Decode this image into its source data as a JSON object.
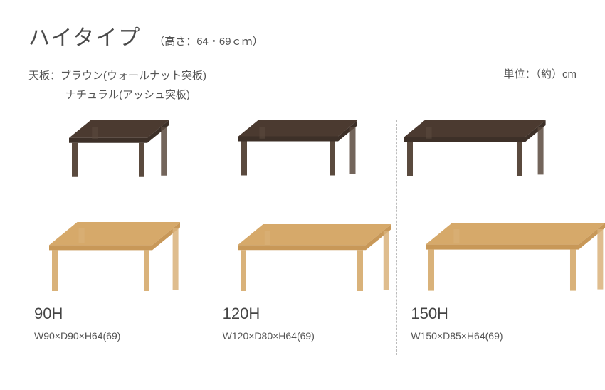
{
  "header": {
    "title": "ハイタイプ",
    "subtitle": "（高さ：64・69ｃｍ）"
  },
  "info": {
    "line1": "天板：ブラウン(ウォールナット突板)",
    "line2": "ナチュラル(アッシュ突板)",
    "unit": "単位：（約）cm"
  },
  "colors": {
    "brown_top": "#4b3a30",
    "brown_leg": "#5a4a3e",
    "brown_side": "#3d3028",
    "natural_top": "#d6a96a",
    "natural_leg": "#d9b27a",
    "natural_side": "#c89858"
  },
  "products": [
    {
      "model": "90H",
      "dims": "W90×D90×H64(69)",
      "back_w": 110,
      "back_d": 55,
      "front_w": 145,
      "front_d": 72
    },
    {
      "model": "120H",
      "dims": "W120×D80×H64(69)",
      "back_w": 140,
      "back_d": 50,
      "front_w": 180,
      "front_d": 65
    },
    {
      "model": "150H",
      "dims": "W150×D85×H64(69)",
      "back_w": 170,
      "back_d": 52,
      "front_w": 215,
      "front_d": 68
    }
  ]
}
